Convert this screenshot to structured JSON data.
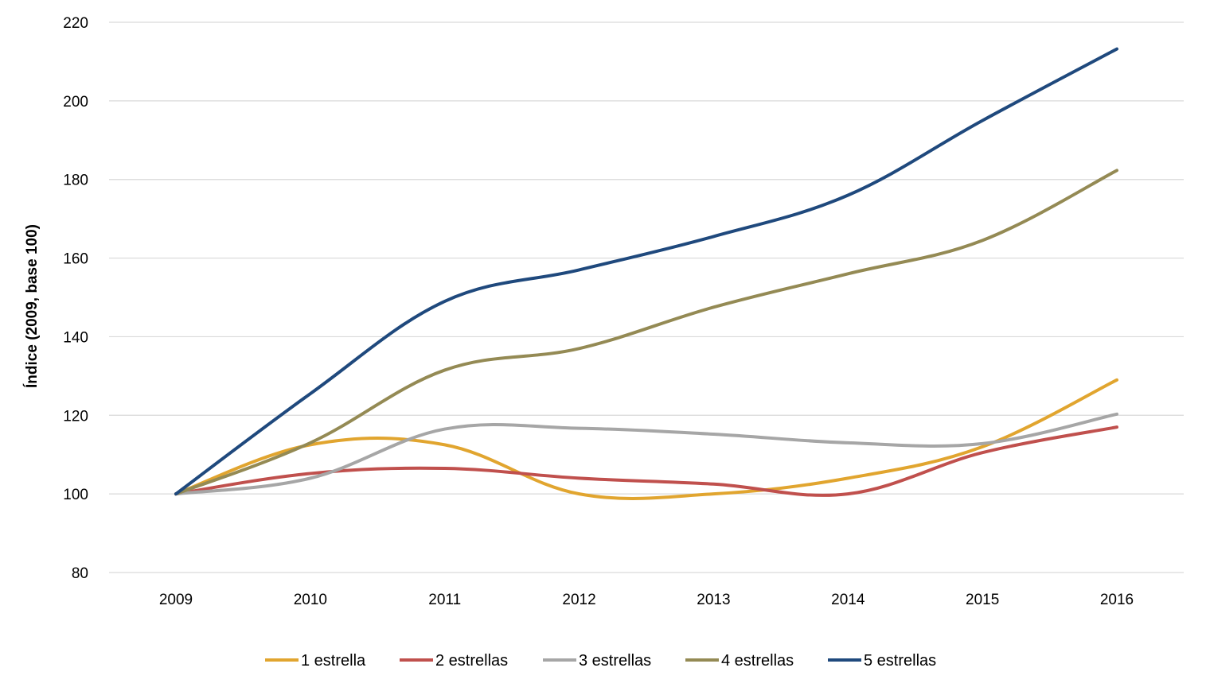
{
  "chart_data": {
    "type": "line",
    "title": "",
    "xlabel": "",
    "ylabel": "Índice (2009, base 100)",
    "categories": [
      "2009",
      "2010",
      "2011",
      "2012",
      "2013",
      "2014",
      "2015",
      "2016"
    ],
    "ylim": [
      80,
      220
    ],
    "yticks": [
      80,
      100,
      120,
      140,
      160,
      180,
      200,
      220
    ],
    "grid": true,
    "legend_position": "bottom",
    "series": [
      {
        "name": "1 estrella",
        "color": "#e1a52f",
        "values": [
          100,
          112.5,
          112.5,
          100,
          100,
          104,
          112,
          129
        ]
      },
      {
        "name": "2 estrellas",
        "color": "#c0504d",
        "values": [
          100,
          105.2,
          106.5,
          104,
          102.5,
          100,
          110.5,
          117
        ]
      },
      {
        "name": "3 estrellas",
        "color": "#a6a6a6",
        "values": [
          100,
          104,
          116.5,
          116.7,
          115.2,
          113,
          112.8,
          120.3
        ]
      },
      {
        "name": "4 estrellas",
        "color": "#948a54",
        "values": [
          100,
          113,
          131.5,
          137,
          147.5,
          156,
          164.5,
          182.3
        ]
      },
      {
        "name": "5 estrellas",
        "color": "#1f497d",
        "values": [
          100,
          125.5,
          149,
          157,
          165.5,
          176,
          195,
          213.2
        ]
      }
    ]
  }
}
